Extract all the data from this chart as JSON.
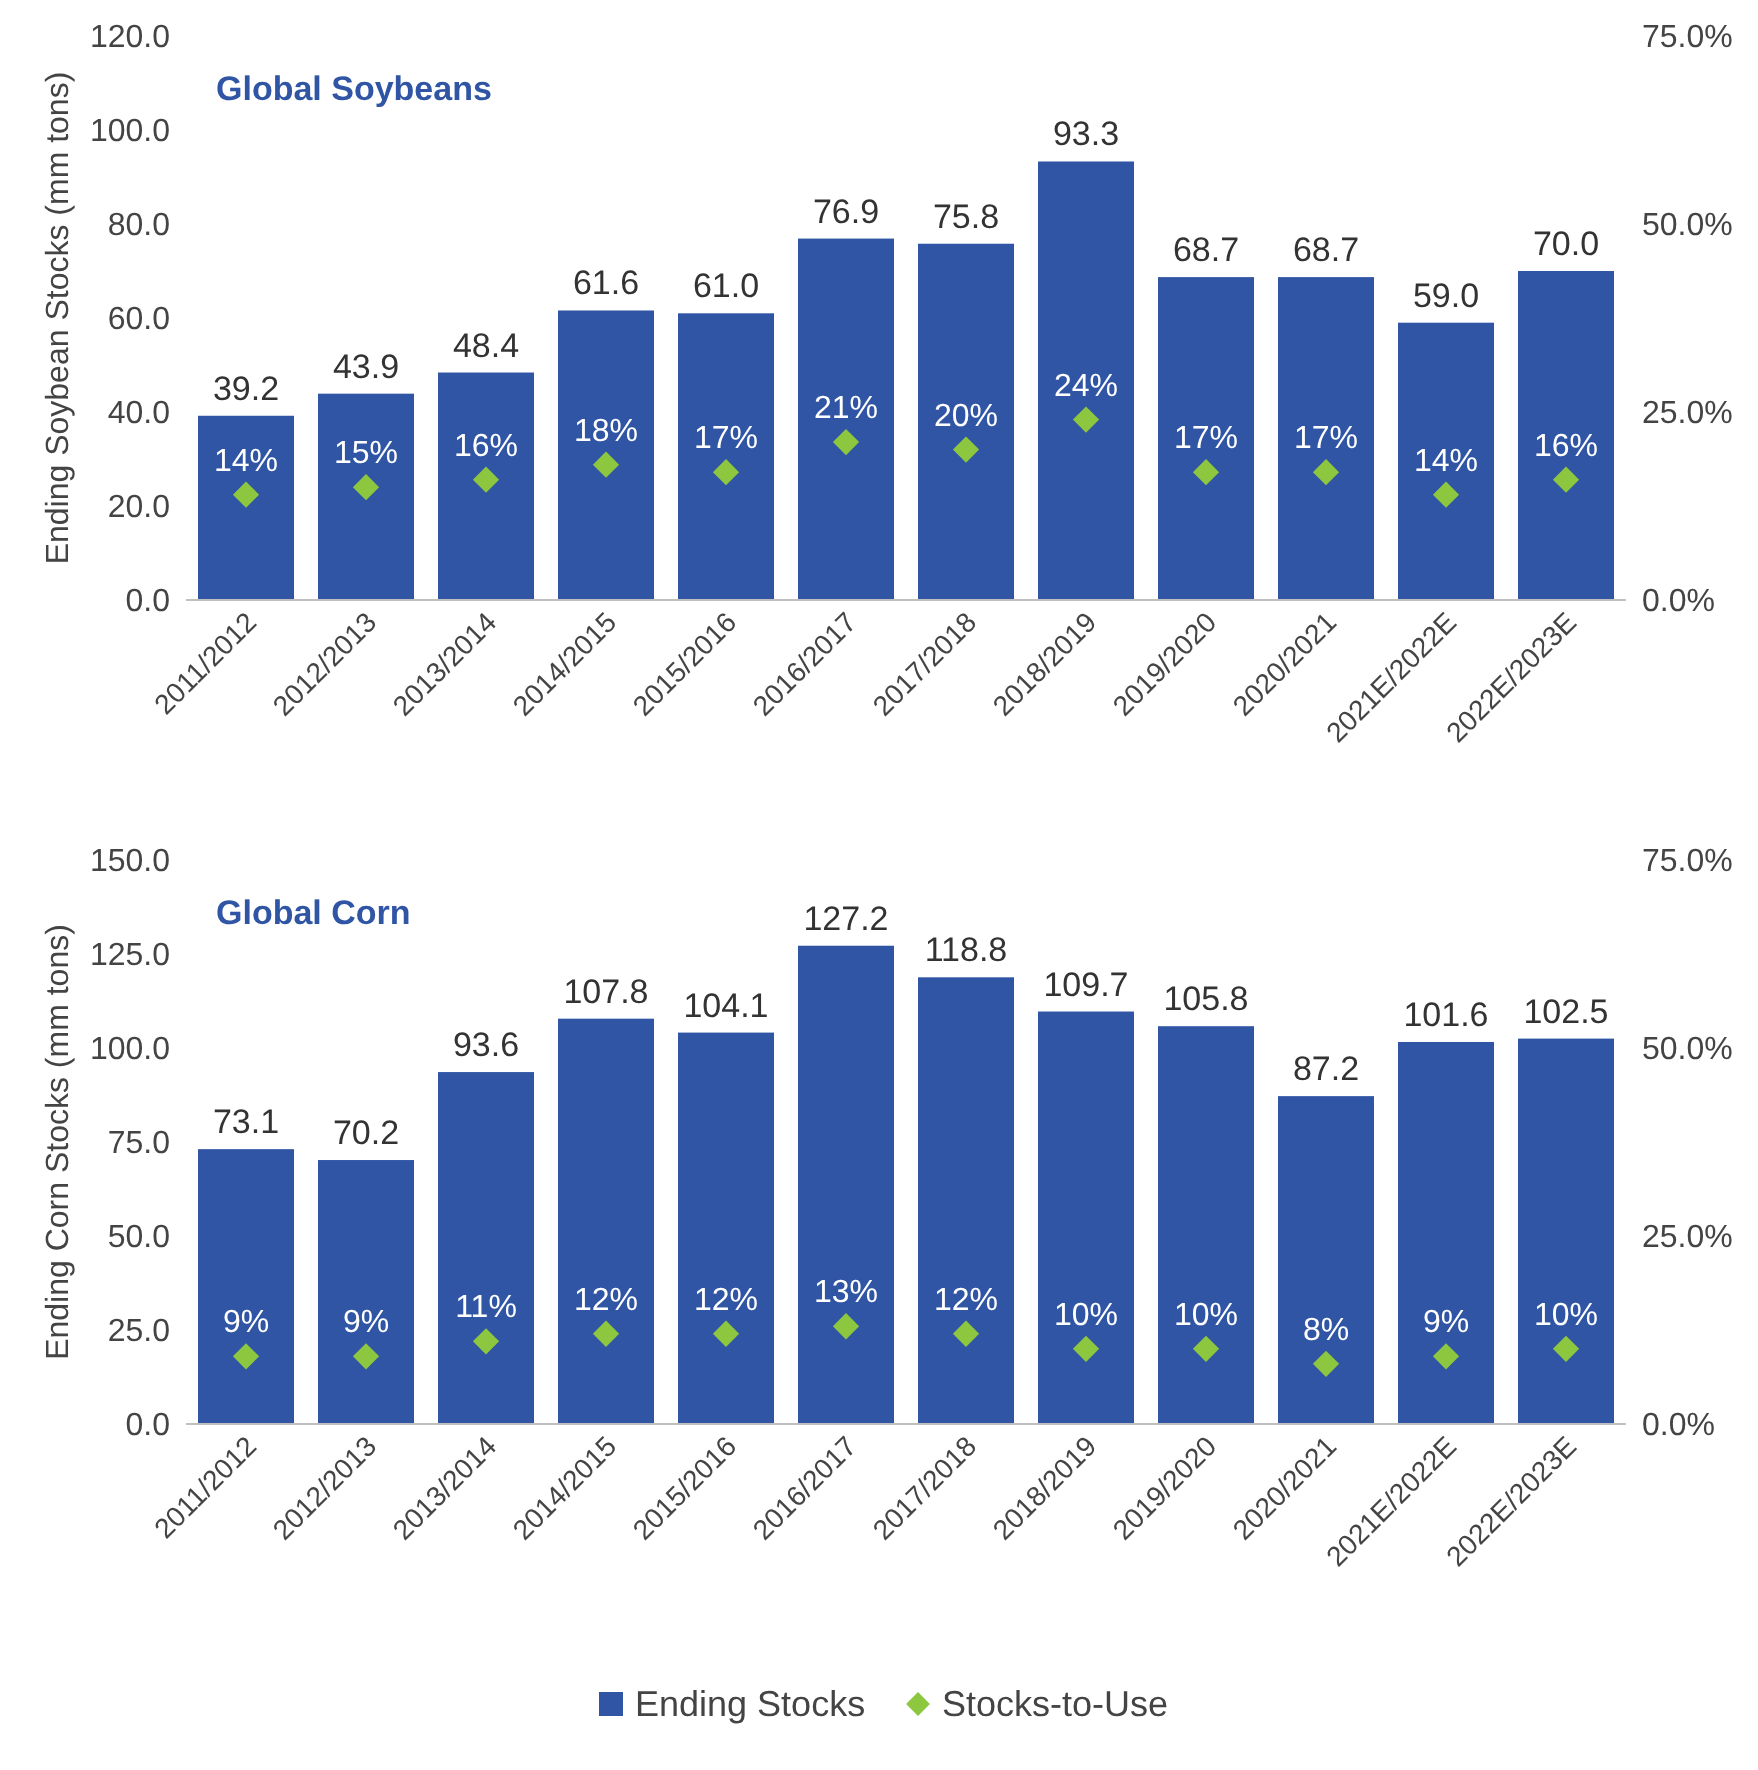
{
  "chart_data": [
    {
      "type": "bar",
      "title": "Global Soybeans",
      "ylabel": "Ending Soybean Stocks (mm tons)",
      "categories": [
        "2011/2012",
        "2012/2013",
        "2013/2014",
        "2014/2015",
        "2015/2016",
        "2016/2017",
        "2017/2018",
        "2018/2019",
        "2019/2020",
        "2020/2021",
        "2021E/2022E",
        "2022E/2023E"
      ],
      "series": [
        {
          "color": "#2f55a4",
          "values": [
            39.2,
            43.9,
            48.4,
            61.6,
            61.0,
            76.9,
            75.8,
            93.3,
            68.7,
            68.7,
            59.0,
            70.0
          ],
          "value_labels": [
            "39.2",
            "43.9",
            "48.4",
            "61.6",
            "61.0",
            "76.9",
            "75.8",
            "93.3",
            "68.7",
            "68.7",
            "59.0",
            "70.0"
          ]
        },
        {
          "type": "scatter",
          "axis": "y2",
          "marker": "diamond",
          "color": "#8dc63f",
          "values": [
            14,
            15,
            16,
            18,
            17,
            21,
            20,
            24,
            17,
            17,
            14,
            16
          ],
          "value_labels": [
            "14%",
            "15%",
            "16%",
            "18%",
            "17%",
            "21%",
            "20%",
            "24%",
            "17%",
            "17%",
            "14%",
            "16%"
          ]
        }
      ],
      "ylim": [
        0,
        120
      ],
      "yticks": [
        {
          "value": 0,
          "label": "0.0"
        },
        {
          "value": 20,
          "label": "20.0"
        },
        {
          "value": 40,
          "label": "40.0"
        },
        {
          "value": 60,
          "label": "60.0"
        },
        {
          "value": 80,
          "label": "80.0"
        },
        {
          "value": 100,
          "label": "100.0"
        },
        {
          "value": 120,
          "label": "120.0"
        }
      ],
      "y2lim": [
        0,
        75
      ],
      "y2ticks": [
        {
          "value": 0,
          "label": "0.0%"
        },
        {
          "value": 25,
          "label": "25.0%"
        },
        {
          "value": 50,
          "label": "50.0%"
        },
        {
          "value": 75,
          "label": "75.0%"
        }
      ]
    },
    {
      "type": "bar",
      "title": "Global Corn",
      "ylabel": "Ending Corn Stocks (mm tons)",
      "legend": "bottom",
      "categories": [
        "2011/2012",
        "2012/2013",
        "2013/2014",
        "2014/2015",
        "2015/2016",
        "2016/2017",
        "2017/2018",
        "2018/2019",
        "2019/2020",
        "2020/2021",
        "2021E/2022E",
        "2022E/2023E"
      ],
      "series": [
        {
          "name": "Ending Stocks",
          "color": "#2f55a4",
          "values": [
            73.1,
            70.2,
            93.6,
            107.8,
            104.1,
            127.2,
            118.8,
            109.7,
            105.8,
            87.2,
            101.6,
            102.5
          ],
          "value_labels": [
            "73.1",
            "70.2",
            "93.6",
            "107.8",
            "104.1",
            "127.2",
            "118.8",
            "109.7",
            "105.8",
            "87.2",
            "101.6",
            "102.5"
          ]
        },
        {
          "type": "scatter",
          "name": "Stocks-to-Use",
          "axis": "y2",
          "marker": "diamond",
          "color": "#8dc63f",
          "values": [
            9,
            9,
            11,
            12,
            12,
            13,
            12,
            10,
            10,
            8,
            9,
            10
          ],
          "value_labels": [
            "9%",
            "9%",
            "11%",
            "12%",
            "12%",
            "13%",
            "12%",
            "10%",
            "10%",
            "8%",
            "9%",
            "10%"
          ]
        }
      ],
      "ylim": [
        0,
        150
      ],
      "yticks": [
        {
          "value": 0,
          "label": "0.0"
        },
        {
          "value": 25,
          "label": "25.0"
        },
        {
          "value": 50,
          "label": "50.0"
        },
        {
          "value": 75,
          "label": "75.0"
        },
        {
          "value": 100,
          "label": "100.0"
        },
        {
          "value": 125,
          "label": "125.0"
        },
        {
          "value": 150,
          "label": "150.0"
        }
      ],
      "y2lim": [
        0,
        75
      ],
      "y2ticks": [
        {
          "value": 0,
          "label": "0.0%"
        },
        {
          "value": 25,
          "label": "25.0%"
        },
        {
          "value": 50,
          "label": "50.0%"
        },
        {
          "value": 75,
          "label": "75.0%"
        }
      ]
    }
  ]
}
